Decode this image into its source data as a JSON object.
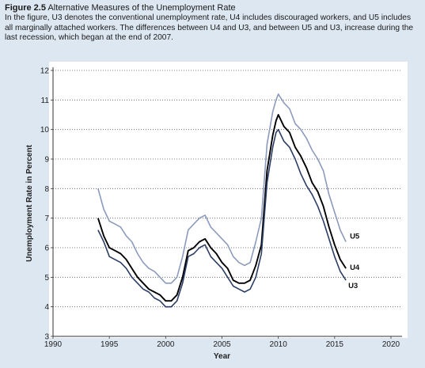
{
  "caption": {
    "figure_number": "Figure 2.5",
    "title": "Alternative Measures of the Unemployment Rate",
    "text": "In the figure, U3 denotes the conventional unemployment rate, U4 includes discouraged workers, and U5 includes all marginally attached workers. The differences between U4 and U3, and between U5 and U3, increase during the last recession, which began at the end of 2007."
  },
  "chart_data": {
    "type": "line",
    "xlabel": "Year",
    "ylabel": "Unemployment Rate in Percent",
    "xlim": [
      1990,
      2020
    ],
    "ylim": [
      3,
      12
    ],
    "xticks": [
      1990,
      1995,
      2000,
      2005,
      2010,
      2015,
      2020
    ],
    "yticks": [
      3,
      4,
      5,
      6,
      7,
      8,
      9,
      10,
      11,
      12
    ],
    "grid": "horizontal-dotted",
    "legend": "direct-labels-at-line-ends",
    "colors": {
      "U3": "#2c3e66",
      "U4": "#000000",
      "U5": "#8c9bbd",
      "background": "#dde7f1",
      "plot": "#ffffff"
    },
    "series": [
      {
        "name": "U5",
        "x": [
          1994.0,
          1994.5,
          1995.0,
          1995.5,
          1996.0,
          1996.5,
          1997.0,
          1997.5,
          1998.0,
          1998.5,
          1999.0,
          1999.5,
          2000.0,
          2000.5,
          2001.0,
          2001.5,
          2002.0,
          2002.5,
          2003.0,
          2003.5,
          2004.0,
          2004.5,
          2005.0,
          2005.5,
          2006.0,
          2006.5,
          2007.0,
          2007.5,
          2008.0,
          2008.5,
          2009.0,
          2009.5,
          2009.8,
          2010.0,
          2010.5,
          2011.0,
          2011.5,
          2012.0,
          2012.5,
          2013.0,
          2013.5,
          2014.0,
          2014.5,
          2015.0,
          2015.5,
          2016.0
        ],
        "values": [
          8.0,
          7.3,
          6.9,
          6.8,
          6.7,
          6.4,
          6.2,
          5.8,
          5.5,
          5.3,
          5.2,
          5.0,
          4.8,
          4.8,
          5.0,
          5.7,
          6.6,
          6.8,
          7.0,
          7.1,
          6.7,
          6.5,
          6.3,
          6.1,
          5.7,
          5.5,
          5.4,
          5.5,
          6.2,
          7.0,
          9.5,
          10.6,
          11.0,
          11.2,
          10.9,
          10.7,
          10.2,
          10.0,
          9.7,
          9.3,
          9.0,
          8.6,
          7.8,
          7.2,
          6.6,
          6.2
        ]
      },
      {
        "name": "U4",
        "x": [
          1994.0,
          1994.5,
          1995.0,
          1995.5,
          1996.0,
          1996.5,
          1997.0,
          1997.5,
          1998.0,
          1998.5,
          1999.0,
          1999.5,
          2000.0,
          2000.5,
          2001.0,
          2001.5,
          2002.0,
          2002.5,
          2003.0,
          2003.5,
          2004.0,
          2004.5,
          2005.0,
          2005.5,
          2006.0,
          2006.5,
          2007.0,
          2007.5,
          2008.0,
          2008.5,
          2009.0,
          2009.5,
          2009.8,
          2010.0,
          2010.5,
          2011.0,
          2011.5,
          2012.0,
          2012.5,
          2013.0,
          2013.5,
          2014.0,
          2014.5,
          2015.0,
          2015.5,
          2016.0
        ],
        "values": [
          7.0,
          6.4,
          6.0,
          5.9,
          5.8,
          5.6,
          5.3,
          5.0,
          4.8,
          4.6,
          4.5,
          4.4,
          4.2,
          4.2,
          4.4,
          5.0,
          5.9,
          6.0,
          6.2,
          6.3,
          6.0,
          5.8,
          5.5,
          5.3,
          4.9,
          4.8,
          4.8,
          4.9,
          5.4,
          6.1,
          8.6,
          9.8,
          10.3,
          10.5,
          10.1,
          9.9,
          9.4,
          9.1,
          8.7,
          8.2,
          7.9,
          7.4,
          6.7,
          6.1,
          5.6,
          5.3
        ]
      },
      {
        "name": "U3",
        "x": [
          1994.0,
          1994.5,
          1995.0,
          1995.5,
          1996.0,
          1996.5,
          1997.0,
          1997.5,
          1998.0,
          1998.5,
          1999.0,
          1999.5,
          2000.0,
          2000.5,
          2001.0,
          2001.5,
          2002.0,
          2002.5,
          2003.0,
          2003.5,
          2004.0,
          2004.5,
          2005.0,
          2005.5,
          2006.0,
          2006.5,
          2007.0,
          2007.5,
          2008.0,
          2008.5,
          2009.0,
          2009.5,
          2009.8,
          2010.0,
          2010.5,
          2011.0,
          2011.5,
          2012.0,
          2012.5,
          2013.0,
          2013.5,
          2014.0,
          2014.5,
          2015.0,
          2015.5,
          2016.0
        ],
        "values": [
          6.6,
          6.2,
          5.7,
          5.6,
          5.5,
          5.3,
          5.0,
          4.8,
          4.6,
          4.5,
          4.3,
          4.2,
          4.0,
          4.0,
          4.2,
          4.8,
          5.7,
          5.8,
          6.0,
          6.1,
          5.7,
          5.5,
          5.3,
          5.0,
          4.7,
          4.6,
          4.5,
          4.6,
          5.0,
          5.8,
          8.2,
          9.4,
          9.9,
          10.0,
          9.6,
          9.4,
          9.0,
          8.5,
          8.1,
          7.8,
          7.4,
          6.9,
          6.3,
          5.7,
          5.2,
          4.9
        ]
      }
    ]
  }
}
